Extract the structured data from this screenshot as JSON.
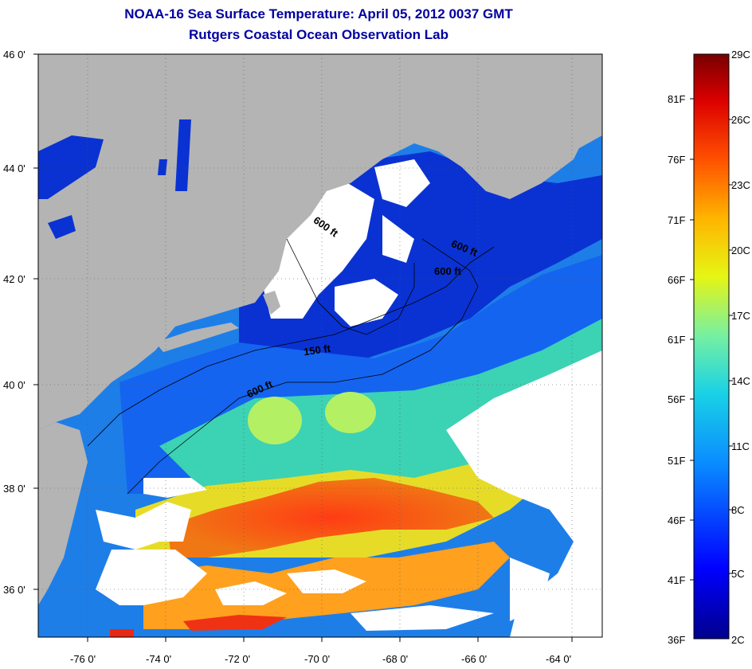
{
  "title_line1": "NOAA-16 Sea Surface Temperature:  April 05, 2012 0037 GMT",
  "title_line2": "Rutgers Coastal Ocean Observation Lab",
  "lat_labels": [
    "46 0'",
    "44 0'",
    "42 0'",
    "40 0'",
    "38 0'",
    "36 0'"
  ],
  "lon_labels": [
    "-76 0'",
    "-74 0'",
    "-72 0'",
    "-70 0'",
    "-68 0'",
    "-66 0'",
    "-64 0'"
  ],
  "isobath_labels": [
    "600 ft",
    "600 ft",
    "600 ft",
    "150 ft",
    "600 ft"
  ],
  "colorbar": {
    "fahrenheit_labels": [
      "81F",
      "76F",
      "71F",
      "66F",
      "61F",
      "56F",
      "51F",
      "46F",
      "41F",
      "36F"
    ],
    "celsius_labels": [
      "29C",
      "26C",
      "23C",
      "20C",
      "17C",
      "14C",
      "11C",
      "8C",
      "5C",
      "2C"
    ]
  },
  "colors": {
    "title": "#0000a0",
    "land": "#b4b4b4",
    "cloud": "#ffffff",
    "cold": "#0a28c8",
    "warm": "#e62814"
  }
}
